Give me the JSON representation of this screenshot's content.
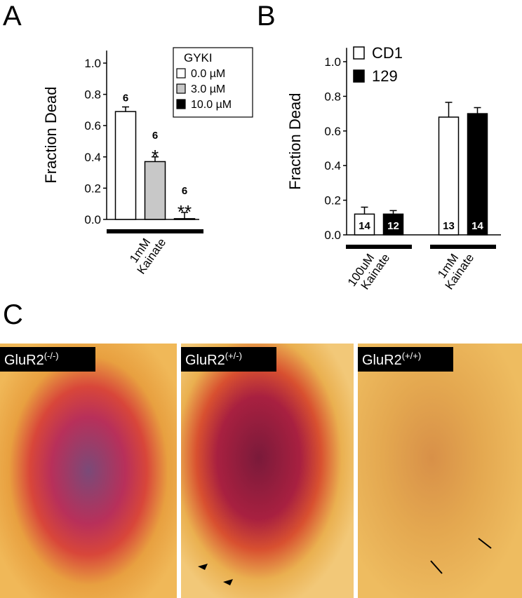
{
  "chart_data": [
    {
      "type": "bar",
      "ylabel": "Fraction Dead",
      "legend_title": "GYKI",
      "categories": [
        [
          "1mM",
          "Kainate"
        ]
      ],
      "series": [
        {
          "name": "0.0 µM",
          "color": "#ffffff",
          "values": [
            0.69
          ],
          "errors": [
            0.03
          ],
          "n_labels": [
            "6"
          ],
          "significance": [
            null
          ]
        },
        {
          "name": "3.0 µM",
          "color": "#c8c8c8",
          "values": [
            0.37
          ],
          "errors": [
            0.03
          ],
          "n_labels": [
            "6"
          ],
          "significance": [
            "*"
          ]
        },
        {
          "name": "10.0 µM",
          "color": "#000000",
          "values": [
            0.005
          ],
          "errors": [
            0.04
          ],
          "n_labels": [
            "6"
          ],
          "significance": [
            "**"
          ]
        }
      ],
      "ylim": [
        0,
        1.08
      ],
      "yticks": [
        {
          "value": 0,
          "label": "0.0"
        },
        0.2,
        0.4,
        0.6,
        0.8,
        {
          "value": 1,
          "label": "1.0"
        }
      ]
    },
    {
      "type": "bar",
      "ylabel": "Fraction Dead",
      "categories": [
        [
          "100uM",
          "Kainate"
        ],
        [
          "1mM",
          "Kainate"
        ]
      ],
      "series": [
        {
          "name": "CD1",
          "color": "#ffffff",
          "values": [
            0.12,
            0.68
          ],
          "errors": [
            0.04,
            0.085
          ],
          "n_labels": [
            "14",
            "13"
          ]
        },
        {
          "name": "129",
          "color": "#000000",
          "values": [
            0.12,
            0.7
          ],
          "errors": [
            0.02,
            0.035
          ],
          "n_labels": [
            "12",
            "14"
          ]
        }
      ],
      "ylim": [
        0,
        1.08
      ],
      "yticks": [
        {
          "value": 0,
          "label": "0.0"
        },
        0.2,
        0.4,
        0.6,
        0.8,
        {
          "value": 1,
          "label": "1.0"
        }
      ]
    }
  ],
  "panel_labels": [
    "A",
    "B",
    "C"
  ],
  "micrographs": [
    {
      "base": "GluR2",
      "sup": "(-/-)"
    },
    {
      "base": "GluR2",
      "sup": "(+/-)"
    },
    {
      "base": "GluR2",
      "sup": "(+/+)"
    }
  ]
}
